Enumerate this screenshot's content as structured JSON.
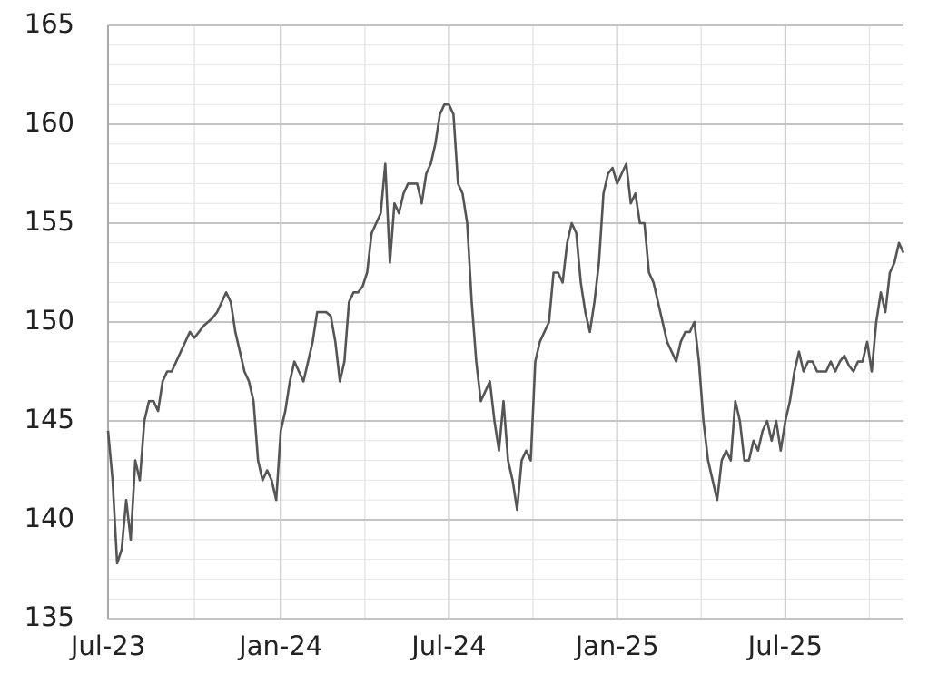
{
  "chart_data": {
    "type": "line",
    "categories": [
      "Jul-23",
      null,
      null,
      null,
      null,
      null,
      null,
      null,
      null,
      null,
      null,
      null,
      null,
      null,
      null,
      null,
      null,
      null,
      null,
      null,
      null,
      null,
      null,
      null,
      null,
      null,
      null,
      null,
      null,
      null,
      null,
      null,
      null,
      null,
      null,
      null,
      null,
      null,
      "Jan-24",
      null,
      null,
      null,
      null,
      null,
      null,
      null,
      null,
      null,
      null,
      null,
      null,
      null,
      null,
      null,
      null,
      null,
      null,
      null,
      null,
      null,
      null,
      null,
      null,
      null,
      null,
      null,
      null,
      null,
      null,
      null,
      null,
      null,
      null,
      null,
      null,
      "Jul-24",
      null,
      null,
      null,
      null,
      null,
      null,
      null,
      null,
      null,
      null,
      null,
      null,
      null,
      null,
      null,
      null,
      null,
      null,
      null,
      null,
      null,
      null,
      null,
      null,
      null,
      null,
      null,
      null,
      null,
      null,
      null,
      null,
      null,
      null,
      null,
      null,
      "Jan-25",
      null,
      null,
      null,
      null,
      null,
      null,
      null,
      null,
      null,
      null,
      null,
      null,
      null,
      null,
      null,
      null,
      null,
      null,
      null,
      null,
      null,
      null,
      null,
      null,
      null,
      null,
      null,
      null,
      null,
      null,
      null,
      null,
      null,
      null,
      null,
      null,
      "Jul-25",
      null,
      null,
      null,
      null,
      null,
      null,
      null,
      null,
      null,
      null,
      null,
      null,
      null,
      null,
      null,
      null,
      null,
      null,
      null,
      null,
      null,
      null,
      null,
      null,
      null,
      null
    ],
    "series": [
      {
        "color": "#555555",
        "values": [
          144.5,
          142,
          137.8,
          138.5,
          141,
          139,
          143,
          142,
          145,
          146,
          146,
          145.5,
          147,
          147.5,
          147.5,
          148,
          148.5,
          149,
          149.5,
          149.2,
          149.5,
          149.8,
          150,
          150.2,
          150.5,
          151,
          151.5,
          151,
          149.5,
          148.5,
          147.5,
          147,
          146,
          143,
          142,
          142.5,
          142,
          141,
          144.5,
          145.5,
          147,
          148,
          147.5,
          147,
          148,
          149,
          150.5,
          150.5,
          150.5,
          150.3,
          149,
          147,
          148,
          151,
          151.5,
          151.5,
          151.8,
          152.5,
          154.5,
          155,
          155.5,
          158,
          153,
          156,
          155.5,
          156.5,
          157,
          157,
          157,
          156,
          157.5,
          158,
          159,
          160.5,
          161,
          161,
          160.5,
          157,
          156.5,
          155,
          151,
          148,
          146,
          146.5,
          147,
          145,
          143.5,
          146,
          143,
          142,
          140.5,
          143,
          143.5,
          143,
          148,
          149,
          149.5,
          150,
          152.5,
          152.5,
          152,
          154,
          155,
          154.5,
          152,
          150.5,
          149.5,
          151,
          153,
          156.5,
          157.5,
          157.8,
          157,
          157.5,
          158,
          156,
          156.5,
          155,
          155,
          152.5,
          152,
          151,
          150,
          149,
          148.5,
          148,
          149,
          149.5,
          149.5,
          150,
          148,
          145,
          143,
          142,
          141,
          143,
          143.5,
          143,
          146,
          145,
          143,
          143,
          144,
          143.5,
          144.5,
          145,
          144,
          145,
          143.5,
          145,
          146,
          147.5,
          148.5,
          147.5,
          148,
          148,
          147.5,
          147.5,
          147.5,
          148,
          147.5,
          148,
          148.3,
          147.8,
          147.5,
          148,
          148,
          149,
          147.5,
          150,
          151.5,
          150.5,
          152.5,
          153,
          154,
          153.5
        ]
      }
    ],
    "ylim": [
      135,
      165
    ],
    "yticks": [
      135,
      140,
      145,
      150,
      155,
      160,
      165
    ],
    "grid": true,
    "minor_grid": true
  }
}
